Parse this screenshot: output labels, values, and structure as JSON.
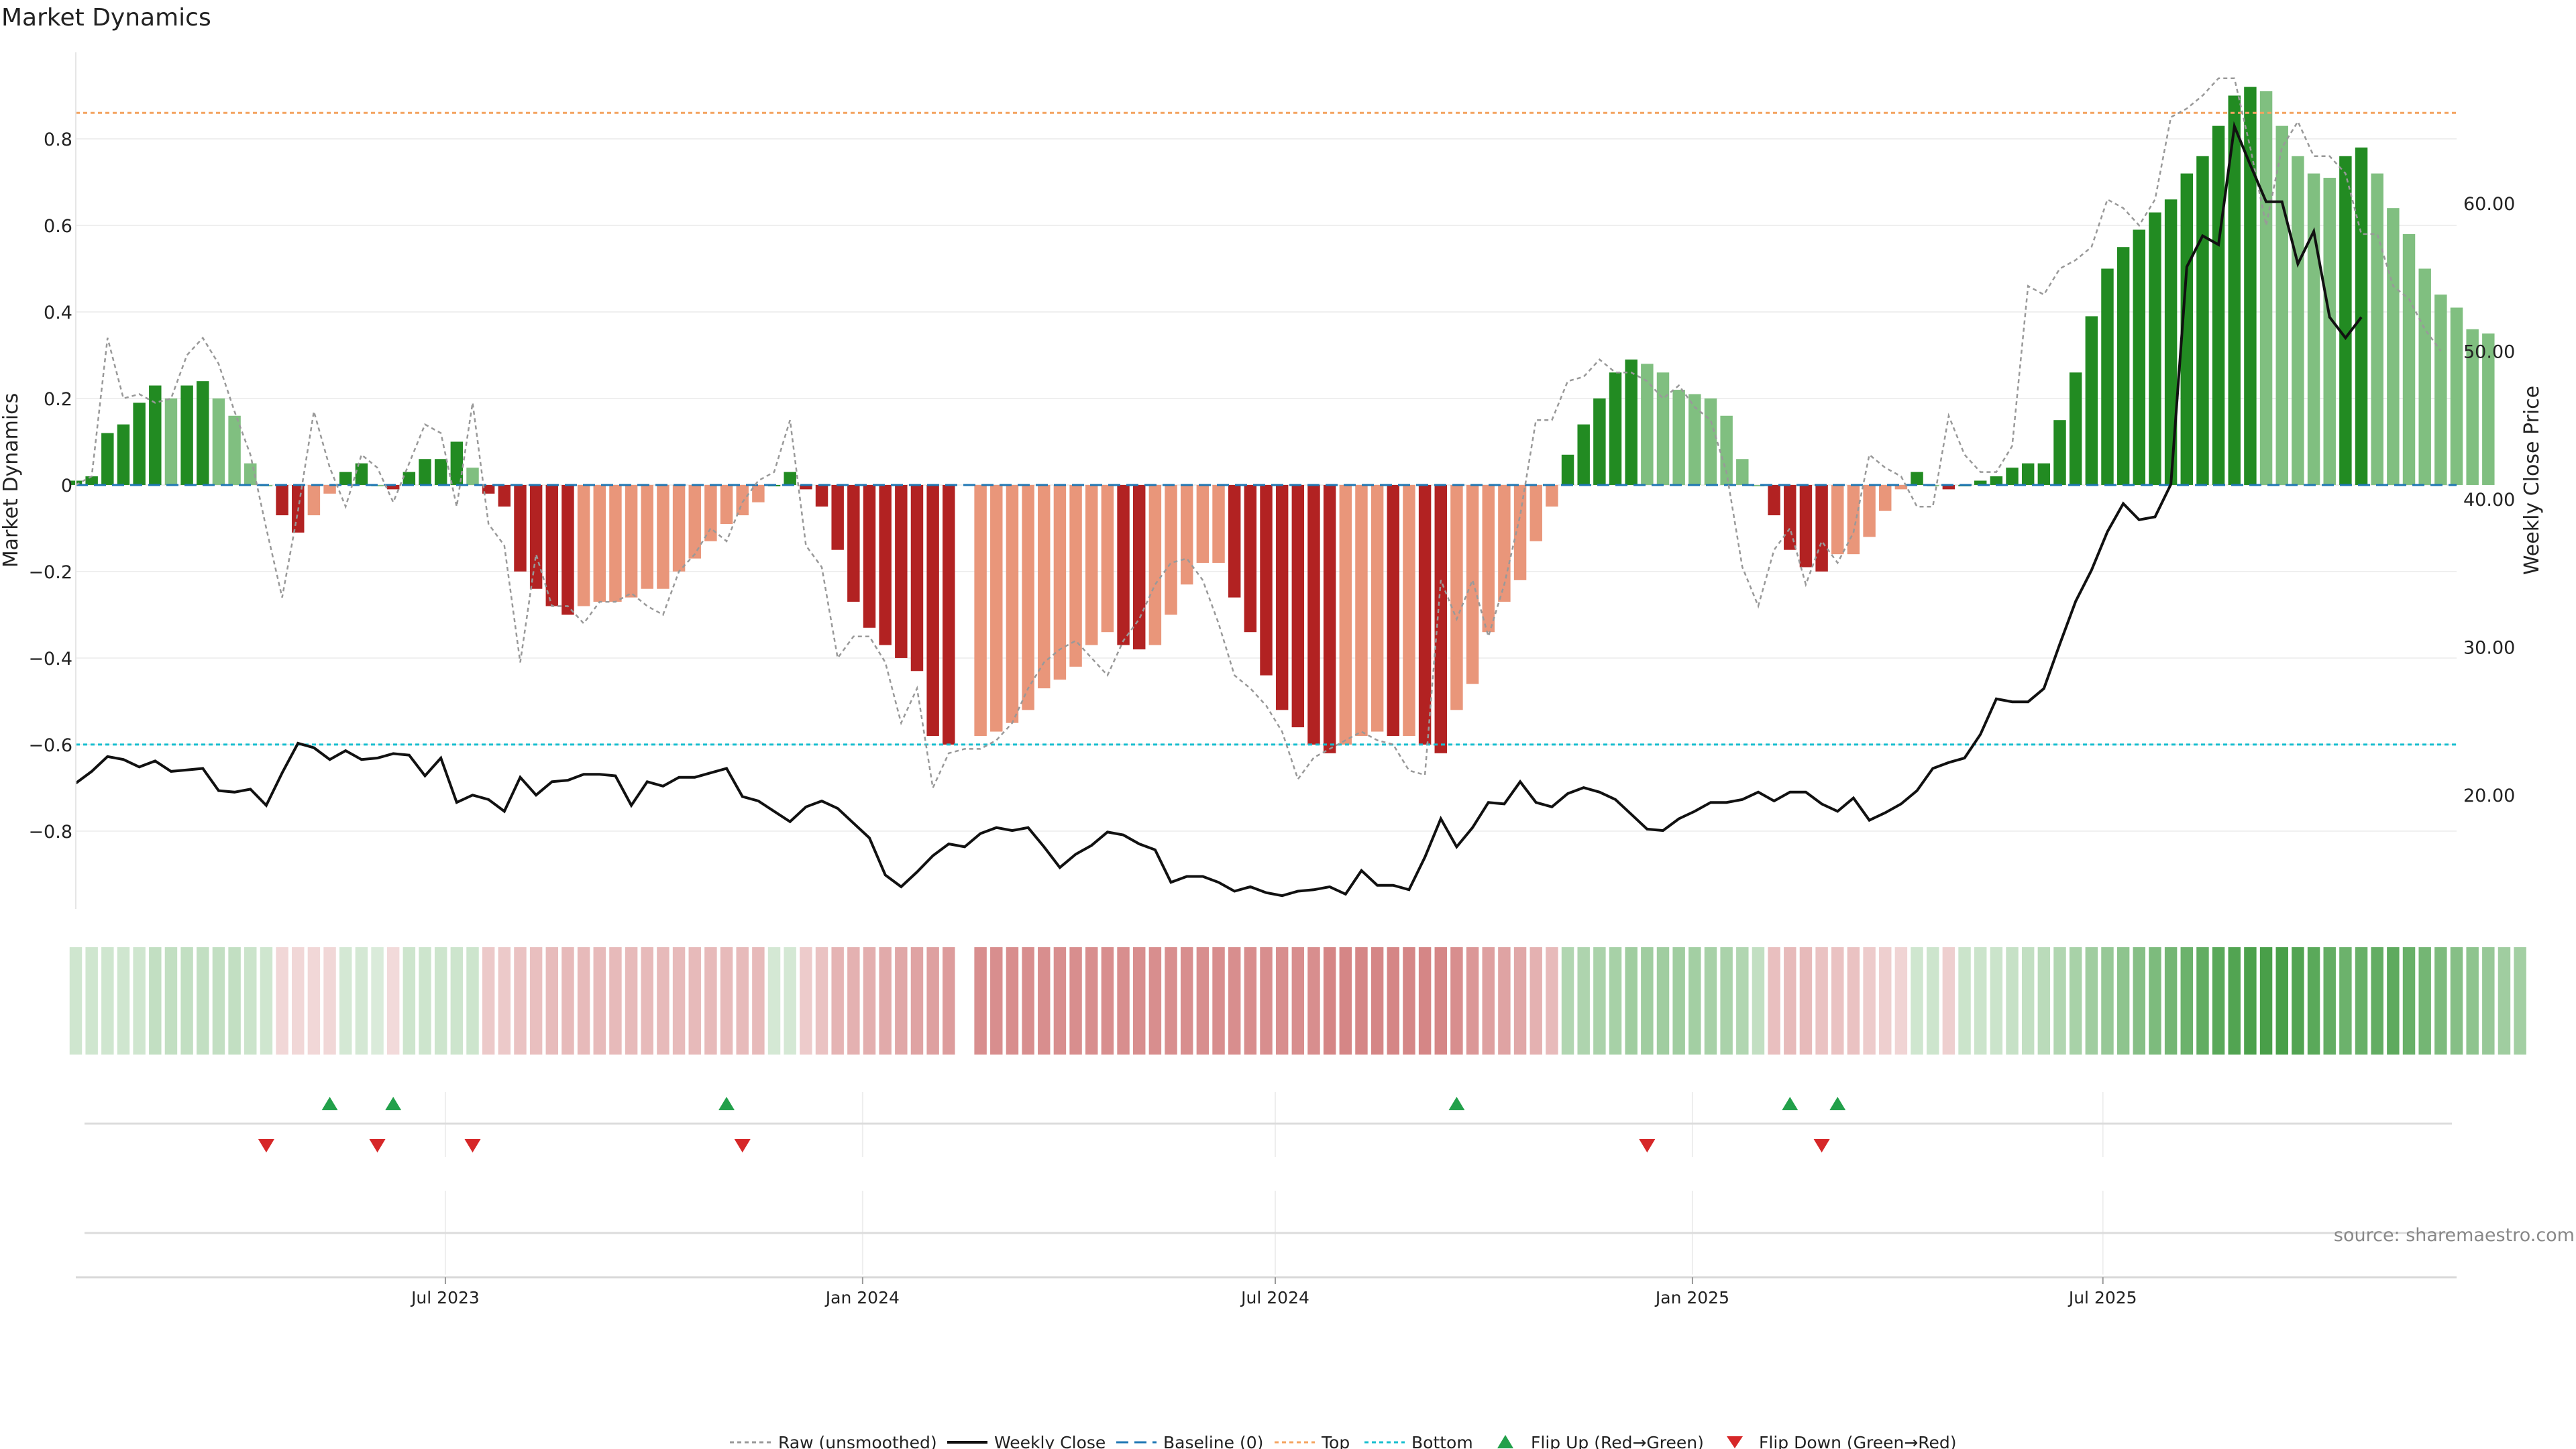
{
  "chart_data": {
    "type": "bar",
    "title": "Market Dynamics",
    "ylabel": "Market Dynamics",
    "y2label": "Weekly Close Price",
    "ylim": [
      -0.98,
      1.0
    ],
    "y2lim": [
      12.3,
      70.2
    ],
    "yticks": [
      -0.8,
      -0.6,
      -0.4,
      -0.2,
      0,
      0.2,
      0.4,
      0.6,
      0.8
    ],
    "ytick_labels": [
      "−0.8",
      "−0.6",
      "−0.4",
      "−0.2",
      "0",
      "0.2",
      "0.4",
      "0.6",
      "0.8"
    ],
    "y2ticks": [
      20,
      30,
      40,
      50,
      60
    ],
    "y2tick_labels": [
      "20.00",
      "30.00",
      "40.00",
      "50.00",
      "60.00"
    ],
    "x_start": "2023-01-19",
    "x_end": "2025-12-04",
    "xtick_labels": [
      {
        "label": "Jul 2023",
        "date": "2023-07-01"
      },
      {
        "label": "Jan 2024",
        "date": "2024-01-01"
      },
      {
        "label": "Jul 2024",
        "date": "2024-07-01"
      },
      {
        "label": "Jan 2025",
        "date": "2025-01-01"
      },
      {
        "label": "Jul 2025",
        "date": "2025-07-01"
      }
    ],
    "first_week": "2023-01-19",
    "top_threshold": 0.86,
    "bottom_threshold": -0.6,
    "baseline": 0,
    "colors": {
      "green_strong": "#228b22",
      "green_weak": "#80bf80",
      "red_strong": "#b22222",
      "red_weak": "#e9967a",
      "close": "#111111",
      "raw": "#999999",
      "baseline": "#1f77b4",
      "top": "#f4a460",
      "bottom": "#17becf",
      "flip_up": "#22a04a",
      "flip_down": "#d62728"
    },
    "series": [
      {
        "name": "Market Dynamics (smoothed)",
        "values": [
          0.01,
          0.02,
          0.12,
          0.14,
          0.19,
          0.23,
          0.2,
          0.23,
          0.24,
          0.2,
          0.16,
          0.05,
          0,
          -0.07,
          -0.11,
          -0.07,
          -0.02,
          0.03,
          0.05,
          0,
          -0.01,
          0.03,
          0.06,
          0.06,
          0.1,
          0.04,
          -0.02,
          -0.05,
          -0.2,
          -0.24,
          -0.28,
          -0.3,
          -0.28,
          -0.27,
          -0.27,
          -0.26,
          -0.24,
          -0.24,
          -0.2,
          -0.17,
          -0.13,
          -0.09,
          -0.07,
          -0.04,
          0,
          0.03,
          -0.01,
          -0.05,
          -0.15,
          -0.27,
          -0.33,
          -0.37,
          -0.4,
          -0.43,
          -0.58,
          -0.6,
          null,
          -0.58,
          -0.57,
          -0.55,
          -0.52,
          -0.47,
          -0.45,
          -0.42,
          -0.37,
          -0.34,
          -0.37,
          -0.38,
          -0.37,
          -0.3,
          -0.23,
          -0.18,
          -0.18,
          -0.26,
          -0.34,
          -0.44,
          -0.52,
          -0.56,
          -0.6,
          -0.62,
          -0.6,
          -0.58,
          -0.57,
          -0.58,
          -0.58,
          -0.6,
          -0.62,
          -0.52,
          -0.46,
          -0.34,
          -0.27,
          -0.22,
          -0.13,
          -0.05,
          0.07,
          0.14,
          0.2,
          0.26,
          0.29,
          0.28,
          0.26,
          0.22,
          0.21,
          0.2,
          0.16,
          0.06,
          0,
          -0.07,
          -0.15,
          -0.19,
          -0.2,
          -0.16,
          -0.16,
          -0.12,
          -0.06,
          -0.01,
          0.03,
          0,
          -0.01,
          0,
          0.01,
          0.02,
          0.04,
          0.05,
          0.05,
          0.15,
          0.26,
          0.39,
          0.5,
          0.55,
          0.59,
          0.63,
          0.66,
          0.72,
          0.76,
          0.83,
          0.9,
          0.92,
          0.91,
          0.83,
          0.76,
          0.72,
          0.71,
          0.76,
          0.78,
          0.72,
          0.64,
          0.58,
          0.5,
          0.44,
          0.41,
          0.36,
          0.35
        ]
      },
      {
        "name": "Raw (unsmoothed)",
        "values": [
          0.0,
          0.02,
          0.34,
          0.2,
          0.21,
          0.19,
          0.2,
          0.3,
          0.34,
          0.28,
          0.17,
          0.07,
          -0.1,
          -0.26,
          -0.06,
          0.17,
          0.04,
          -0.05,
          0.07,
          0.04,
          -0.04,
          0.05,
          0.14,
          0.12,
          -0.05,
          0.19,
          -0.09,
          -0.14,
          -0.41,
          -0.16,
          -0.28,
          -0.28,
          -0.32,
          -0.27,
          -0.27,
          -0.25,
          -0.28,
          -0.3,
          -0.2,
          -0.16,
          -0.1,
          -0.13,
          -0.04,
          0.01,
          0.03,
          0.15,
          -0.14,
          -0.19,
          -0.4,
          -0.35,
          -0.35,
          -0.41,
          -0.55,
          -0.47,
          -0.7,
          -0.62,
          -0.61,
          -0.61,
          -0.59,
          -0.55,
          -0.47,
          -0.41,
          -0.38,
          -0.36,
          -0.4,
          -0.44,
          -0.36,
          -0.31,
          -0.23,
          -0.18,
          -0.17,
          -0.22,
          -0.32,
          -0.44,
          -0.47,
          -0.51,
          -0.57,
          -0.68,
          -0.63,
          -0.61,
          -0.59,
          -0.57,
          -0.59,
          -0.6,
          -0.66,
          -0.67,
          -0.22,
          -0.31,
          -0.22,
          -0.35,
          -0.23,
          -0.07,
          0.15,
          0.15,
          0.24,
          0.25,
          0.29,
          0.26,
          0.26,
          0.24,
          0.2,
          0.23,
          0.18,
          0.15,
          0.03,
          -0.19,
          -0.28,
          -0.15,
          -0.1,
          -0.23,
          -0.13,
          -0.18,
          -0.11,
          0.07,
          0.04,
          0.02,
          -0.05,
          -0.05,
          0.16,
          0.07,
          0.03,
          0.03,
          0.09,
          0.46,
          0.44,
          0.5,
          0.52,
          0.55,
          0.66,
          0.64,
          0.6,
          0.66,
          0.85,
          0.87,
          0.9,
          0.94,
          0.94,
          0.78,
          0.6,
          0.78,
          0.84,
          0.76,
          0.76,
          0.72,
          0.58,
          0.58,
          0.46,
          0.43,
          0.36,
          0.31
        ]
      },
      {
        "name": "Weekly Close",
        "values": [
          20.8,
          21.6,
          22.6,
          22.4,
          21.9,
          22.3,
          21.6,
          21.7,
          21.8,
          20.3,
          20.2,
          20.4,
          19.3,
          21.5,
          23.5,
          23.2,
          22.4,
          23,
          22.4,
          22.5,
          22.8,
          22.7,
          21.3,
          22.5,
          19.5,
          20,
          19.7,
          18.9,
          21.2,
          20,
          20.9,
          21,
          21.4,
          21.4,
          21.3,
          19.3,
          20.9,
          20.6,
          21.2,
          21.2,
          21.5,
          21.8,
          19.9,
          19.6,
          18.9,
          18.2,
          19.2,
          19.6,
          19.1,
          18.1,
          17.1,
          14.6,
          13.8,
          14.8,
          15.9,
          16.7,
          16.5,
          17.4,
          17.8,
          17.6,
          17.8,
          16.5,
          15.1,
          16,
          16.6,
          17.5,
          17.3,
          16.7,
          16.3,
          14.1,
          14.5,
          14.5,
          14.1,
          13.5,
          13.8,
          13.4,
          13.2,
          13.5,
          13.6,
          13.8,
          13.3,
          14.9,
          13.9,
          13.9,
          13.6,
          15.8,
          18.4,
          16.5,
          17.8,
          19.5,
          19.4,
          20.9,
          19.5,
          19.2,
          20.1,
          20.5,
          20.2,
          19.7,
          18.7,
          17.7,
          17.6,
          18.4,
          18.9,
          19.5,
          19.5,
          19.7,
          20.2,
          19.6,
          20.2,
          20.2,
          19.4,
          18.9,
          19.8,
          18.3,
          18.8,
          19.4,
          20.3,
          21.8,
          22.2,
          22.5,
          24.1,
          26.5,
          26.3,
          26.3,
          27.2,
          30.2,
          33.1,
          35.2,
          37.8,
          39.7,
          38.6,
          38.8,
          41,
          55.7,
          57.8,
          57.2,
          65.2,
          62.6,
          60.1,
          60.1,
          55.9,
          58.1,
          52.3,
          50.9,
          52.3
        ]
      }
    ],
    "heatmap_values": [
      0.12,
      0.12,
      0.12,
      0.12,
      0.12,
      0.2,
      0.2,
      0.2,
      0.2,
      0.2,
      0.2,
      0.15,
      0.12,
      0.08,
      0.08,
      0.08,
      0.08,
      0.1,
      0.1,
      0.06,
      0.06,
      0.14,
      0.14,
      0.14,
      0.14,
      0.14,
      0.16,
      0.16,
      0.2,
      0.22,
      0.24,
      0.25,
      0.25,
      0.25,
      0.25,
      0.25,
      0.25,
      0.25,
      0.25,
      0.25,
      0.25,
      0.25,
      0.25,
      0.25,
      0.1,
      0.1,
      0.15,
      0.2,
      0.28,
      0.3,
      0.32,
      0.34,
      0.36,
      0.38,
      0.4,
      0.42,
      null,
      0.5,
      0.5,
      0.5,
      0.5,
      0.5,
      0.5,
      0.5,
      0.5,
      0.5,
      0.5,
      0.5,
      0.5,
      0.5,
      0.5,
      0.5,
      0.5,
      0.5,
      0.5,
      0.5,
      0.5,
      0.5,
      0.5,
      0.55,
      0.55,
      0.55,
      0.55,
      0.55,
      0.55,
      0.55,
      0.55,
      0.5,
      0.45,
      0.4,
      0.38,
      0.36,
      0.3,
      0.25,
      0.3,
      0.32,
      0.34,
      0.36,
      0.4,
      0.4,
      0.4,
      0.4,
      0.38,
      0.36,
      0.34,
      0.3,
      0.2,
      0.22,
      0.25,
      0.25,
      0.2,
      0.2,
      0.2,
      0.15,
      0.12,
      0.1,
      0.12,
      0.14,
      0.12,
      0.15,
      0.15,
      0.15,
      0.18,
      0.2,
      0.25,
      0.3,
      0.35,
      0.4,
      0.45,
      0.5,
      0.55,
      0.6,
      0.65,
      0.7,
      0.75,
      0.8,
      0.85,
      0.88,
      0.9,
      0.9,
      0.85,
      0.8,
      0.75,
      0.7,
      0.72,
      0.75,
      0.78,
      0.72,
      0.65,
      0.6,
      0.55,
      0.5,
      0.45,
      0.4,
      0.38
    ],
    "flip_up_weeks": [
      16,
      20,
      41,
      87,
      108,
      111
    ],
    "flip_down_weeks": [
      12,
      19,
      25,
      42,
      99,
      110
    ],
    "legend": [
      {
        "label": "Raw (unsmoothed)",
        "style": "dotted-gray"
      },
      {
        "label": "Weekly Close",
        "style": "solid-black"
      },
      {
        "label": "Baseline (0)",
        "style": "dashed-blue"
      },
      {
        "label": "Top",
        "style": "dotted-orange"
      },
      {
        "label": "Bottom",
        "style": "dotted-cyan"
      },
      {
        "label": "Flip Up (Red→Green)",
        "style": "triangle-up-green"
      },
      {
        "label": "Flip Down (Green→Red)",
        "style": "triangle-down-red"
      }
    ],
    "legend_position": "bottom-center",
    "source_text": "source: sharemaestro.com"
  }
}
